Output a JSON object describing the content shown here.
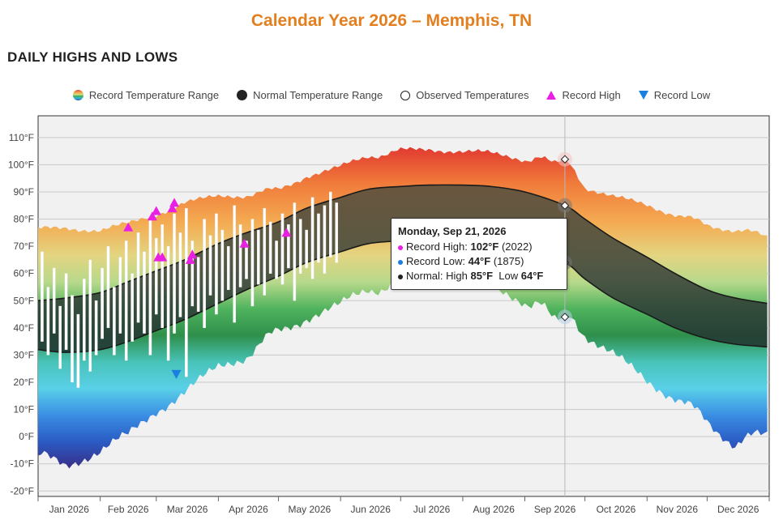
{
  "page": {
    "title": "Calendar Year 2026 – Memphis, TN",
    "section_title": "DAILY HIGHS AND LOWS"
  },
  "legend": {
    "record_range": "Record Temperature Range",
    "normal_range": "Normal Temperature Range",
    "observed": "Observed Temperatures",
    "record_high": "Record High",
    "record_low": "Record Low"
  },
  "tooltip": {
    "date": "Monday, Sep 21, 2026",
    "record_high_label": "Record High: ",
    "record_high_value": "102°F",
    "record_high_year": " (2022)",
    "record_low_label": "Record Low: ",
    "record_low_value": "44°F",
    "record_low_year": " (1875)",
    "normal_label": "Normal: High ",
    "normal_high_value": "85°F",
    "normal_low_label": "  Low ",
    "normal_low_value": "64°F"
  },
  "chart_data": {
    "type": "area",
    "y_unit": "°F",
    "ylim": [
      -22,
      118
    ],
    "y_ticks": [
      -20,
      -10,
      0,
      10,
      20,
      30,
      40,
      50,
      60,
      70,
      80,
      90,
      100,
      110
    ],
    "y_tick_labels": [
      "-20°F",
      "-10°F",
      "0°F",
      "10°F",
      "20°F",
      "30°F",
      "40°F",
      "50°F",
      "60°F",
      "70°F",
      "80°F",
      "90°F",
      "100°F",
      "110°F"
    ],
    "x_range": [
      "2026-01-01",
      "2026-12-31"
    ],
    "x_tick_labels": [
      "Jan 2026",
      "Feb 2026",
      "Mar 2026",
      "Apr 2026",
      "May 2026",
      "Jun 2026",
      "Jul 2026",
      "Aug 2026",
      "Sep 2026",
      "Oct 2026",
      "Nov 2026",
      "Dec 2026"
    ],
    "grid": true,
    "highlight_date": "2026-09-21",
    "series": [
      {
        "name": "Record Temperature Range",
        "dates": [
          "2026-01-01",
          "2026-01-15",
          "2026-02-01",
          "2026-02-15",
          "2026-03-01",
          "2026-03-15",
          "2026-04-01",
          "2026-04-15",
          "2026-05-01",
          "2026-05-15",
          "2026-06-01",
          "2026-06-15",
          "2026-07-01",
          "2026-07-15",
          "2026-08-01",
          "2026-08-15",
          "2026-09-01",
          "2026-09-21",
          "2026-10-01",
          "2026-10-15",
          "2026-11-01",
          "2026-11-15",
          "2026-12-01",
          "2026-12-15",
          "2026-12-31"
        ],
        "high": [
          76,
          77,
          76,
          78,
          82,
          86,
          88,
          89,
          91,
          96,
          99,
          103,
          105,
          106,
          105,
          104,
          102,
          102,
          92,
          88,
          85,
          82,
          78,
          76,
          74
        ],
        "low": [
          -7,
          -10,
          -5,
          0,
          10,
          16,
          25,
          30,
          39,
          44,
          48,
          54,
          56,
          58,
          56,
          54,
          50,
          44,
          38,
          30,
          20,
          15,
          6,
          -3,
          2
        ]
      },
      {
        "name": "Normal Temperature Range",
        "dates": [
          "2026-01-01",
          "2026-01-15",
          "2026-02-01",
          "2026-02-15",
          "2026-03-01",
          "2026-03-15",
          "2026-04-01",
          "2026-04-15",
          "2026-05-01",
          "2026-05-15",
          "2026-06-01",
          "2026-06-15",
          "2026-07-01",
          "2026-07-15",
          "2026-08-01",
          "2026-08-15",
          "2026-09-01",
          "2026-09-21",
          "2026-10-01",
          "2026-10-15",
          "2026-11-01",
          "2026-11-15",
          "2026-12-01",
          "2026-12-15",
          "2026-12-31"
        ],
        "high": [
          50,
          51,
          53,
          57,
          61,
          65,
          71,
          75,
          79,
          84,
          88,
          91,
          92,
          92.5,
          92.5,
          92,
          90,
          85,
          80,
          73,
          66,
          60,
          54,
          51,
          49
        ],
        "low": [
          32,
          31,
          32,
          35,
          39,
          43,
          49,
          54,
          59,
          64,
          68,
          71,
          72,
          72.5,
          72.5,
          72,
          69,
          64,
          58,
          51,
          45,
          40,
          36,
          34,
          33
        ]
      },
      {
        "name": "Observed Temperatures",
        "dates": [
          "2026-01-03",
          "2026-01-06",
          "2026-01-09",
          "2026-01-12",
          "2026-01-15",
          "2026-01-18",
          "2026-01-21",
          "2026-01-24",
          "2026-01-27",
          "2026-01-30",
          "2026-02-02",
          "2026-02-05",
          "2026-02-08",
          "2026-02-11",
          "2026-02-14",
          "2026-02-17",
          "2026-02-20",
          "2026-02-23",
          "2026-02-26",
          "2026-03-01",
          "2026-03-04",
          "2026-03-07",
          "2026-03-10",
          "2026-03-13",
          "2026-03-16",
          "2026-03-19",
          "2026-03-22",
          "2026-03-25",
          "2026-03-28",
          "2026-03-31",
          "2026-04-03",
          "2026-04-06",
          "2026-04-09",
          "2026-04-12",
          "2026-04-15",
          "2026-04-18",
          "2026-04-21",
          "2026-04-24",
          "2026-04-27",
          "2026-04-30",
          "2026-05-03",
          "2026-05-06",
          "2026-05-09",
          "2026-05-12",
          "2026-05-15",
          "2026-05-18",
          "2026-05-21",
          "2026-05-24",
          "2026-05-27",
          "2026-05-30"
        ],
        "high": [
          68,
          55,
          62,
          48,
          60,
          52,
          45,
          58,
          65,
          50,
          62,
          70,
          55,
          66,
          72,
          60,
          75,
          68,
          80,
          73,
          78,
          70,
          82,
          75,
          84,
          72,
          66,
          80,
          74,
          82,
          76,
          70,
          85,
          78,
          72,
          80,
          76,
          84,
          79,
          72,
          82,
          78,
          86,
          80,
          76,
          88,
          82,
          85,
          90,
          86
        ],
        "low": [
          35,
          30,
          38,
          25,
          32,
          20,
          18,
          28,
          24,
          30,
          36,
          40,
          30,
          38,
          28,
          35,
          42,
          38,
          30,
          45,
          40,
          28,
          38,
          44,
          22,
          48,
          46,
          40,
          52,
          45,
          50,
          54,
          42,
          55,
          58,
          48,
          56,
          52,
          60,
          58,
          56,
          62,
          50,
          60,
          62,
          58,
          64,
          60,
          66,
          64
        ]
      },
      {
        "name": "Record High",
        "dates": [
          "2026-02-15",
          "2026-02-27",
          "2026-02-29",
          "2026-03-02",
          "2026-03-04",
          "2026-03-09",
          "2026-03-10",
          "2026-03-18",
          "2026-03-19",
          "2026-04-14",
          "2026-05-05"
        ],
        "values": [
          77,
          81,
          83,
          66,
          66,
          84,
          86,
          65,
          67,
          71,
          75
        ]
      },
      {
        "name": "Record Low",
        "dates": [
          "2026-03-11"
        ],
        "values": [
          23
        ]
      }
    ]
  }
}
